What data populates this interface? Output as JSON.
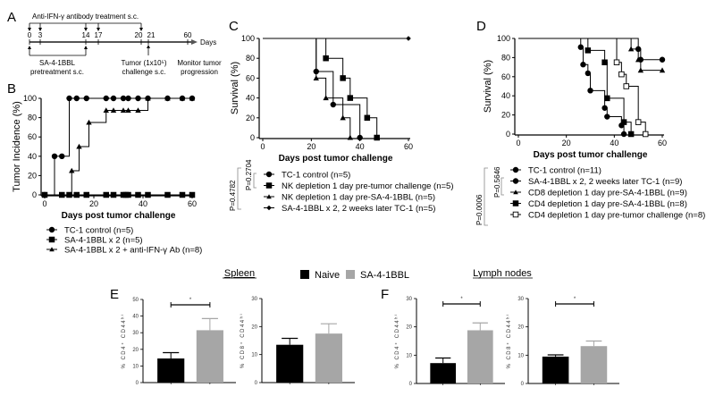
{
  "panels": {
    "A": {
      "label": "A",
      "treatment_title": "Anti-IFN-γ antibody treatment s.c.",
      "days": [
        "0",
        "3",
        "14",
        "17",
        "20",
        "21",
        "60"
      ],
      "axis_label": "Days",
      "pretreatment_label_1": "SA-4-1BBL",
      "pretreatment_label_2": "pretreatment s.c.",
      "tumor_label_1": "Tumor (1x10⁵)",
      "tumor_label_2": "challenge s.c.",
      "monitor_label_1": "Monitor tumor",
      "monitor_label_2": "progression"
    },
    "B": {
      "label": "B"
    },
    "C": {
      "label": "C",
      "p1": "P=0.4782",
      "p2": "P=0.2704"
    },
    "D": {
      "label": "D",
      "p1": "P=0.0006",
      "p2": "P=0.5646"
    },
    "E": {
      "label": "E",
      "group_title": "Spleen"
    },
    "F": {
      "label": "F",
      "group_title": "Lymph nodes"
    }
  },
  "bar_legend": {
    "items": [
      {
        "label": "Naive",
        "color": "#000000"
      },
      {
        "label": "SA-4-1BBL",
        "color": "#a6a6a6"
      }
    ]
  },
  "chart_data": [
    {
      "id": "B",
      "type": "line",
      "step": true,
      "title": "",
      "xlabel": "Days post tumor challenge",
      "ylabel": "Tumor Incidence (%)",
      "xlim": [
        0,
        60
      ],
      "ylim": [
        0,
        100
      ],
      "xticks": [
        "0",
        "20",
        "40",
        "60"
      ],
      "yticks": [
        "0",
        "20",
        "40",
        "60",
        "80",
        "100"
      ],
      "series": [
        {
          "name": "TC-1 control (n=5)",
          "marker": "circle",
          "x": [
            0,
            4,
            7,
            10,
            13,
            17,
            25,
            28,
            32,
            34,
            38,
            42,
            50,
            56,
            60
          ],
          "y": [
            0,
            40,
            40,
            100,
            100,
            100,
            100,
            100,
            100,
            100,
            100,
            100,
            100,
            100,
            100
          ]
        },
        {
          "name": "SA-4-1BBL x 2 (n=5)",
          "marker": "square",
          "x": [
            0,
            7,
            10,
            13,
            17,
            25,
            28,
            32,
            33,
            34,
            38,
            42,
            50,
            56,
            60
          ],
          "y": [
            0,
            0,
            0,
            0,
            0,
            0,
            0,
            0,
            0,
            0,
            0,
            0,
            0,
            0,
            0
          ]
        },
        {
          "name": "SA-4-1BBL x 2 + anti-IFN-γ Ab (n=8)",
          "marker": "triangle",
          "x": [
            0,
            7,
            11,
            14,
            18,
            25,
            28,
            32,
            34,
            38,
            42,
            50,
            56,
            60
          ],
          "y": [
            0,
            0,
            25,
            50,
            75,
            87.5,
            87.5,
            87.5,
            87.5,
            87.5,
            100,
            100,
            100,
            100
          ]
        }
      ]
    },
    {
      "id": "C",
      "type": "line",
      "step": true,
      "title": "",
      "xlabel": "Days post tumor challenge",
      "ylabel": "Survival (%)",
      "xlim": [
        0,
        60
      ],
      "ylim": [
        0,
        100
      ],
      "xticks": [
        "0",
        "20",
        "40",
        "60"
      ],
      "yticks": [
        "0",
        "20",
        "40",
        "60",
        "80",
        "100"
      ],
      "series": [
        {
          "name": "TC-1 control  (n=5)",
          "marker": "circle",
          "x": [
            0,
            22,
            29,
            40
          ],
          "y": [
            100,
            66.7,
            33.3,
            0
          ]
        },
        {
          "name": "NK depletion 1 day pre-tumor challenge  (n=5)",
          "marker": "square",
          "x": [
            0,
            26,
            33,
            36,
            43,
            47
          ],
          "y": [
            100,
            80,
            60,
            40,
            20,
            0
          ]
        },
        {
          "name": "NK depletion 1 day pre-SA-4-1BBL  (n=5)",
          "marker": "triangle",
          "x": [
            0,
            22,
            26,
            33,
            36
          ],
          "y": [
            100,
            60,
            40,
            20,
            0
          ]
        },
        {
          "name": "SA-4-1BBL x 2, 2 weeks later TC-1  (n=5)",
          "marker": "diamond",
          "x": [
            0,
            60
          ],
          "y": [
            100,
            100
          ]
        }
      ]
    },
    {
      "id": "D",
      "type": "line",
      "step": true,
      "title": "",
      "xlabel": "Days post tumor challenge",
      "ylabel": "Survival (%)",
      "xlim": [
        0,
        60
      ],
      "ylim": [
        0,
        100
      ],
      "xticks": [
        "0",
        "20",
        "40",
        "60"
      ],
      "yticks": [
        "0",
        "20",
        "40",
        "60",
        "80",
        "100"
      ],
      "series": [
        {
          "name": "TC-1 control   (n=11)",
          "marker": "circle",
          "open": false,
          "x": [
            0,
            26,
            27,
            29,
            30,
            36,
            37,
            43,
            44
          ],
          "y": [
            100,
            90.9,
            72.7,
            63.6,
            45.5,
            27.3,
            18.2,
            9.1,
            0
          ]
        },
        {
          "name": "SA-4-1BBL x 2, 2 weeks later TC-1  (n=9)",
          "marker": "circle",
          "open": false,
          "x": [
            0,
            50,
            51,
            60
          ],
          "y": [
            100,
            88.9,
            77.8,
            77.8
          ]
        },
        {
          "name": "CD8 depletion 1 day pre-SA-4-1BBL (n=9)",
          "marker": "triangle",
          "open": false,
          "x": [
            0,
            47,
            50,
            51,
            60
          ],
          "y": [
            100,
            88.9,
            77.8,
            66.7,
            66.7
          ]
        },
        {
          "name": "CD4 depletion 1 day pre-SA-4-1BBL (n=8)",
          "marker": "square",
          "open": false,
          "x": [
            0,
            29,
            36,
            37,
            44,
            47
          ],
          "y": [
            100,
            87.5,
            75,
            37.5,
            12.5,
            0
          ]
        },
        {
          "name": "CD4 depletion 1 day pre-tumor challenge (n=8)",
          "marker": "square",
          "open": true,
          "x": [
            0,
            41,
            43,
            45,
            50,
            53
          ],
          "y": [
            100,
            75,
            62.5,
            50,
            12.5,
            0
          ]
        }
      ]
    },
    {
      "id": "E-CD4",
      "type": "bar",
      "title": "",
      "xlabel": "",
      "ylabel": "% CD4⁺ CD44ʰⁱ",
      "categories": [
        "Naive",
        "SA-4-1BBL"
      ],
      "values": [
        14.5,
        31.5
      ],
      "errors": [
        3.5,
        7
      ],
      "ylim": [
        0,
        50
      ],
      "yticks": [
        "0",
        "10",
        "20",
        "30",
        "40",
        "50"
      ],
      "significance": "*"
    },
    {
      "id": "E-CD8",
      "type": "bar",
      "title": "",
      "xlabel": "",
      "ylabel": "% CD8⁺ CD44ʰⁱ",
      "categories": [
        "Naive",
        "SA-4-1BBL"
      ],
      "values": [
        13.5,
        17.5
      ],
      "errors": [
        2.3,
        3.5
      ],
      "ylim": [
        0,
        30
      ],
      "yticks": [
        "0",
        "10",
        "20",
        "30"
      ],
      "significance": ""
    },
    {
      "id": "F-CD4",
      "type": "bar",
      "title": "",
      "xlabel": "",
      "ylabel": "% CD4⁺ CD44ʰⁱ",
      "categories": [
        "Naive",
        "SA-4-1BBL"
      ],
      "values": [
        7.2,
        18.8
      ],
      "errors": [
        1.8,
        2.6
      ],
      "ylim": [
        0,
        30
      ],
      "yticks": [
        "0",
        "10",
        "20",
        "30"
      ],
      "significance": "*"
    },
    {
      "id": "F-CD8",
      "type": "bar",
      "title": "",
      "xlabel": "",
      "ylabel": "% CD8⁺ CD44ʰⁱ",
      "categories": [
        "Naive",
        "SA-4-1BBL"
      ],
      "values": [
        9.5,
        13.2
      ],
      "errors": [
        0.6,
        1.8
      ],
      "ylim": [
        0,
        30
      ],
      "yticks": [
        "0",
        "10",
        "20",
        "30"
      ],
      "significance": "*"
    }
  ]
}
